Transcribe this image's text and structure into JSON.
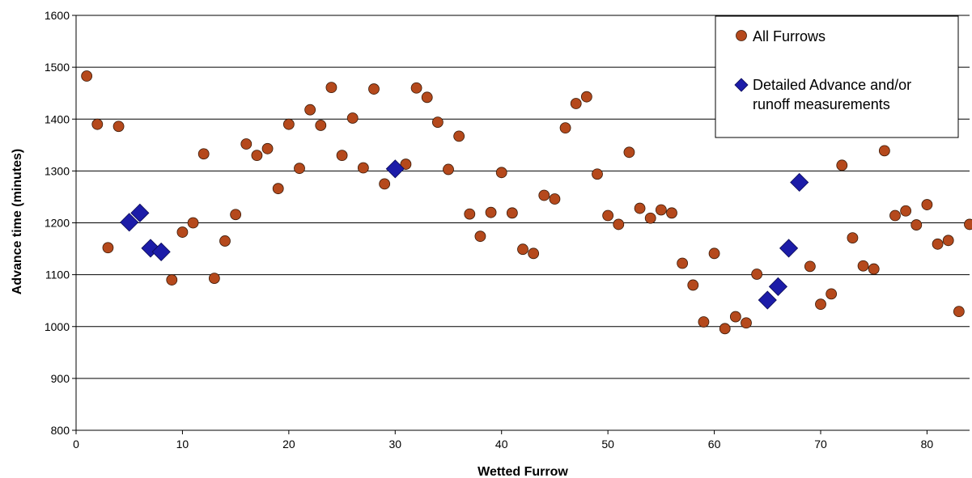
{
  "chart_data": {
    "type": "scatter",
    "title": "",
    "xlabel": "Wetted Furrow",
    "ylabel": "Advance time (minutes)",
    "xlim": [
      0,
      84
    ],
    "ylim": [
      800,
      1600
    ],
    "x_ticks": [
      0,
      10,
      20,
      30,
      40,
      50,
      60,
      70,
      80
    ],
    "y_ticks": [
      800,
      900,
      1000,
      1100,
      1200,
      1300,
      1400,
      1500,
      1600
    ],
    "grid": "horizontal",
    "legend_position": "top-right",
    "series": [
      {
        "name": "All Furrows",
        "marker": "circle",
        "color": "#B5491C",
        "points": [
          [
            1,
            1483
          ],
          [
            2,
            1390
          ],
          [
            3,
            1152
          ],
          [
            4,
            1386
          ],
          [
            5,
            1200
          ],
          [
            6,
            1217
          ],
          [
            7,
            1150
          ],
          [
            8,
            1143
          ],
          [
            9,
            1090
          ],
          [
            10,
            1182
          ],
          [
            11,
            1200
          ],
          [
            12,
            1333
          ],
          [
            13,
            1093
          ],
          [
            14,
            1165
          ],
          [
            15,
            1216
          ],
          [
            16,
            1352
          ],
          [
            17,
            1330
          ],
          [
            18,
            1343
          ],
          [
            19,
            1266
          ],
          [
            20,
            1390
          ],
          [
            21,
            1305
          ],
          [
            22,
            1418
          ],
          [
            23,
            1388
          ],
          [
            24,
            1461
          ],
          [
            25,
            1330
          ],
          [
            26,
            1402
          ],
          [
            27,
            1306
          ],
          [
            28,
            1458
          ],
          [
            29,
            1275
          ],
          [
            30,
            1302
          ],
          [
            31,
            1313
          ],
          [
            32,
            1460
          ],
          [
            33,
            1442
          ],
          [
            34,
            1394
          ],
          [
            35,
            1303
          ],
          [
            36,
            1367
          ],
          [
            37,
            1217
          ],
          [
            38,
            1174
          ],
          [
            39,
            1220
          ],
          [
            40,
            1297
          ],
          [
            41,
            1219
          ],
          [
            42,
            1149
          ],
          [
            43,
            1141
          ],
          [
            44,
            1253
          ],
          [
            45,
            1246
          ],
          [
            46,
            1383
          ],
          [
            47,
            1430
          ],
          [
            48,
            1443
          ],
          [
            49,
            1294
          ],
          [
            50,
            1214
          ],
          [
            51,
            1197
          ],
          [
            52,
            1336
          ],
          [
            53,
            1228
          ],
          [
            54,
            1209
          ],
          [
            55,
            1225
          ],
          [
            56,
            1219
          ],
          [
            57,
            1122
          ],
          [
            58,
            1080
          ],
          [
            59,
            1009
          ],
          [
            60,
            1141
          ],
          [
            61,
            996
          ],
          [
            62,
            1019
          ],
          [
            63,
            1007
          ],
          [
            64,
            1101
          ],
          [
            65,
            1050
          ],
          [
            66,
            1077
          ],
          [
            67,
            1150
          ],
          [
            68,
            1277
          ],
          [
            69,
            1116
          ],
          [
            70,
            1043
          ],
          [
            71,
            1063
          ],
          [
            72,
            1311
          ],
          [
            73,
            1171
          ],
          [
            74,
            1117
          ],
          [
            75,
            1111
          ],
          [
            76,
            1339
          ],
          [
            77,
            1214
          ],
          [
            78,
            1223
          ],
          [
            79,
            1196
          ],
          [
            80,
            1235
          ],
          [
            81,
            1159
          ],
          [
            82,
            1166
          ],
          [
            83,
            1029
          ],
          [
            84,
            1197
          ]
        ]
      },
      {
        "name": "Detailed Advance and/or runoff measurements",
        "legend_lines": [
          "Detailed Advance and/or",
          "runoff measurements"
        ],
        "marker": "diamond",
        "color": "#1C1CA8",
        "points": [
          [
            5,
            1201
          ],
          [
            6,
            1219
          ],
          [
            7,
            1151
          ],
          [
            8,
            1144
          ],
          [
            30,
            1304
          ],
          [
            65,
            1051
          ],
          [
            66,
            1077
          ],
          [
            67,
            1151
          ],
          [
            68,
            1278
          ]
        ]
      }
    ]
  }
}
